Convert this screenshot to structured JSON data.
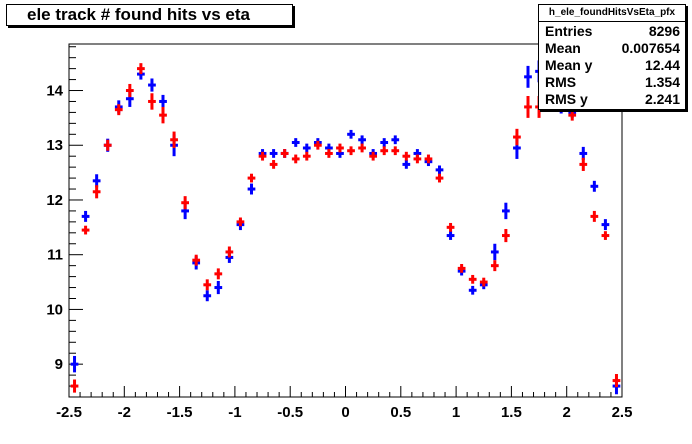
{
  "title": "ele track # found hits vs eta",
  "stats": {
    "name": "h_ele_foundHitsVsEta_pfx",
    "rows": [
      {
        "label": "Entries",
        "value": "8296"
      },
      {
        "label": "Mean",
        "value": "0.007654"
      },
      {
        "label": "Mean y",
        "value": "12.44"
      },
      {
        "label": "RMS",
        "value": "1.354"
      },
      {
        "label": "RMS y",
        "value": "2.241"
      }
    ]
  },
  "chart_data": {
    "type": "scatter",
    "xlim": [
      -2.5,
      2.5
    ],
    "ylim": [
      8.4,
      14.85
    ],
    "x_ticks": [
      -2.5,
      -2,
      -1.5,
      -1,
      -0.5,
      0,
      0.5,
      1,
      1.5,
      2,
      2.5
    ],
    "x_tick_labels": [
      "-2.5",
      "-2",
      "-1.5",
      "-1",
      "-0.5",
      "0",
      "0.5",
      "1",
      "1.5",
      "2",
      "2.5"
    ],
    "y_ticks": [
      9,
      10,
      11,
      12,
      13,
      14
    ],
    "y_tick_labels": [
      "9",
      "10",
      "11",
      "12",
      "13",
      "14"
    ],
    "bin_half_width": 0.05,
    "series": [
      {
        "color": "#0000ff",
        "points": [
          {
            "x": -2.45,
            "y": 9.0,
            "err": 0.15
          },
          {
            "x": -2.35,
            "y": 11.7,
            "err": 0.1
          },
          {
            "x": -2.25,
            "y": 12.35,
            "err": 0.12
          },
          {
            "x": -2.15,
            "y": 13.0,
            "err": 0.12
          },
          {
            "x": -2.05,
            "y": 13.7,
            "err": 0.12
          },
          {
            "x": -1.95,
            "y": 13.85,
            "err": 0.15
          },
          {
            "x": -1.85,
            "y": 14.3,
            "err": 0.1
          },
          {
            "x": -1.75,
            "y": 14.1,
            "err": 0.12
          },
          {
            "x": -1.65,
            "y": 13.8,
            "err": 0.12
          },
          {
            "x": -1.55,
            "y": 13.0,
            "err": 0.2
          },
          {
            "x": -1.45,
            "y": 11.8,
            "err": 0.15
          },
          {
            "x": -1.35,
            "y": 10.85,
            "err": 0.12
          },
          {
            "x": -1.25,
            "y": 10.25,
            "err": 0.1
          },
          {
            "x": -1.15,
            "y": 10.4,
            "err": 0.12
          },
          {
            "x": -1.05,
            "y": 10.95,
            "err": 0.1
          },
          {
            "x": -0.95,
            "y": 11.55,
            "err": 0.1
          },
          {
            "x": -0.85,
            "y": 12.2,
            "err": 0.1
          },
          {
            "x": -0.75,
            "y": 12.85,
            "err": 0.08
          },
          {
            "x": -0.65,
            "y": 12.85,
            "err": 0.08
          },
          {
            "x": -0.55,
            "y": 12.85,
            "err": 0.08
          },
          {
            "x": -0.45,
            "y": 13.05,
            "err": 0.08
          },
          {
            "x": -0.35,
            "y": 12.95,
            "err": 0.08
          },
          {
            "x": -0.25,
            "y": 13.05,
            "err": 0.08
          },
          {
            "x": -0.15,
            "y": 12.95,
            "err": 0.08
          },
          {
            "x": -0.05,
            "y": 12.85,
            "err": 0.08
          },
          {
            "x": 0.05,
            "y": 13.2,
            "err": 0.08
          },
          {
            "x": 0.15,
            "y": 13.1,
            "err": 0.08
          },
          {
            "x": 0.25,
            "y": 12.85,
            "err": 0.08
          },
          {
            "x": 0.35,
            "y": 13.05,
            "err": 0.08
          },
          {
            "x": 0.45,
            "y": 13.1,
            "err": 0.08
          },
          {
            "x": 0.55,
            "y": 12.65,
            "err": 0.08
          },
          {
            "x": 0.65,
            "y": 12.85,
            "err": 0.08
          },
          {
            "x": 0.75,
            "y": 12.7,
            "err": 0.08
          },
          {
            "x": 0.85,
            "y": 12.55,
            "err": 0.08
          },
          {
            "x": 0.95,
            "y": 11.35,
            "err": 0.08
          },
          {
            "x": 1.05,
            "y": 10.7,
            "err": 0.08
          },
          {
            "x": 1.15,
            "y": 10.35,
            "err": 0.08
          },
          {
            "x": 1.25,
            "y": 10.45,
            "err": 0.08
          },
          {
            "x": 1.35,
            "y": 11.05,
            "err": 0.15
          },
          {
            "x": 1.45,
            "y": 11.8,
            "err": 0.15
          },
          {
            "x": 1.55,
            "y": 12.95,
            "err": 0.2
          },
          {
            "x": 1.65,
            "y": 14.25,
            "err": 0.2
          },
          {
            "x": 1.75,
            "y": 14.35,
            "err": 0.2
          },
          {
            "x": 1.85,
            "y": 13.9,
            "err": 0.15
          },
          {
            "x": 1.95,
            "y": 13.7,
            "err": 0.12
          },
          {
            "x": 2.05,
            "y": 13.6,
            "err": 0.1
          },
          {
            "x": 2.15,
            "y": 12.85,
            "err": 0.12
          },
          {
            "x": 2.25,
            "y": 12.25,
            "err": 0.1
          },
          {
            "x": 2.35,
            "y": 11.55,
            "err": 0.1
          },
          {
            "x": 2.45,
            "y": 8.6,
            "err": 0.15
          }
        ]
      },
      {
        "color": "#ff0000",
        "points": [
          {
            "x": -2.45,
            "y": 8.6,
            "err": 0.12
          },
          {
            "x": -2.35,
            "y": 11.45,
            "err": 0.08
          },
          {
            "x": -2.25,
            "y": 12.15,
            "err": 0.12
          },
          {
            "x": -2.15,
            "y": 13.0,
            "err": 0.1
          },
          {
            "x": -2.05,
            "y": 13.65,
            "err": 0.1
          },
          {
            "x": -1.95,
            "y": 14.0,
            "err": 0.12
          },
          {
            "x": -1.85,
            "y": 14.4,
            "err": 0.1
          },
          {
            "x": -1.75,
            "y": 13.8,
            "err": 0.15
          },
          {
            "x": -1.65,
            "y": 13.55,
            "err": 0.15
          },
          {
            "x": -1.55,
            "y": 13.1,
            "err": 0.15
          },
          {
            "x": -1.45,
            "y": 11.95,
            "err": 0.12
          },
          {
            "x": -1.35,
            "y": 10.9,
            "err": 0.1
          },
          {
            "x": -1.25,
            "y": 10.45,
            "err": 0.1
          },
          {
            "x": -1.15,
            "y": 10.65,
            "err": 0.1
          },
          {
            "x": -1.05,
            "y": 11.05,
            "err": 0.1
          },
          {
            "x": -0.95,
            "y": 11.6,
            "err": 0.08
          },
          {
            "x": -0.85,
            "y": 12.4,
            "err": 0.08
          },
          {
            "x": -0.75,
            "y": 12.8,
            "err": 0.08
          },
          {
            "x": -0.65,
            "y": 12.65,
            "err": 0.08
          },
          {
            "x": -0.55,
            "y": 12.85,
            "err": 0.08
          },
          {
            "x": -0.45,
            "y": 12.75,
            "err": 0.08
          },
          {
            "x": -0.35,
            "y": 12.8,
            "err": 0.08
          },
          {
            "x": -0.25,
            "y": 13.0,
            "err": 0.08
          },
          {
            "x": -0.15,
            "y": 12.85,
            "err": 0.08
          },
          {
            "x": -0.05,
            "y": 12.95,
            "err": 0.08
          },
          {
            "x": 0.05,
            "y": 12.9,
            "err": 0.08
          },
          {
            "x": 0.15,
            "y": 12.95,
            "err": 0.08
          },
          {
            "x": 0.25,
            "y": 12.8,
            "err": 0.08
          },
          {
            "x": 0.35,
            "y": 12.9,
            "err": 0.08
          },
          {
            "x": 0.45,
            "y": 12.9,
            "err": 0.08
          },
          {
            "x": 0.55,
            "y": 12.8,
            "err": 0.08
          },
          {
            "x": 0.65,
            "y": 12.75,
            "err": 0.08
          },
          {
            "x": 0.75,
            "y": 12.75,
            "err": 0.08
          },
          {
            "x": 0.85,
            "y": 12.4,
            "err": 0.08
          },
          {
            "x": 0.95,
            "y": 11.5,
            "err": 0.08
          },
          {
            "x": 1.05,
            "y": 10.75,
            "err": 0.08
          },
          {
            "x": 1.15,
            "y": 10.55,
            "err": 0.08
          },
          {
            "x": 1.25,
            "y": 10.5,
            "err": 0.08
          },
          {
            "x": 1.35,
            "y": 10.8,
            "err": 0.1
          },
          {
            "x": 1.45,
            "y": 11.35,
            "err": 0.12
          },
          {
            "x": 1.55,
            "y": 13.15,
            "err": 0.15
          },
          {
            "x": 1.65,
            "y": 13.7,
            "err": 0.2
          },
          {
            "x": 1.75,
            "y": 13.7,
            "err": 0.2
          },
          {
            "x": 1.85,
            "y": 14.0,
            "err": 0.15
          },
          {
            "x": 1.95,
            "y": 13.8,
            "err": 0.12
          },
          {
            "x": 2.05,
            "y": 13.55,
            "err": 0.1
          },
          {
            "x": 2.15,
            "y": 12.65,
            "err": 0.12
          },
          {
            "x": 2.25,
            "y": 11.7,
            "err": 0.1
          },
          {
            "x": 2.35,
            "y": 11.35,
            "err": 0.08
          },
          {
            "x": 2.45,
            "y": 8.7,
            "err": 0.12
          }
        ]
      }
    ]
  }
}
